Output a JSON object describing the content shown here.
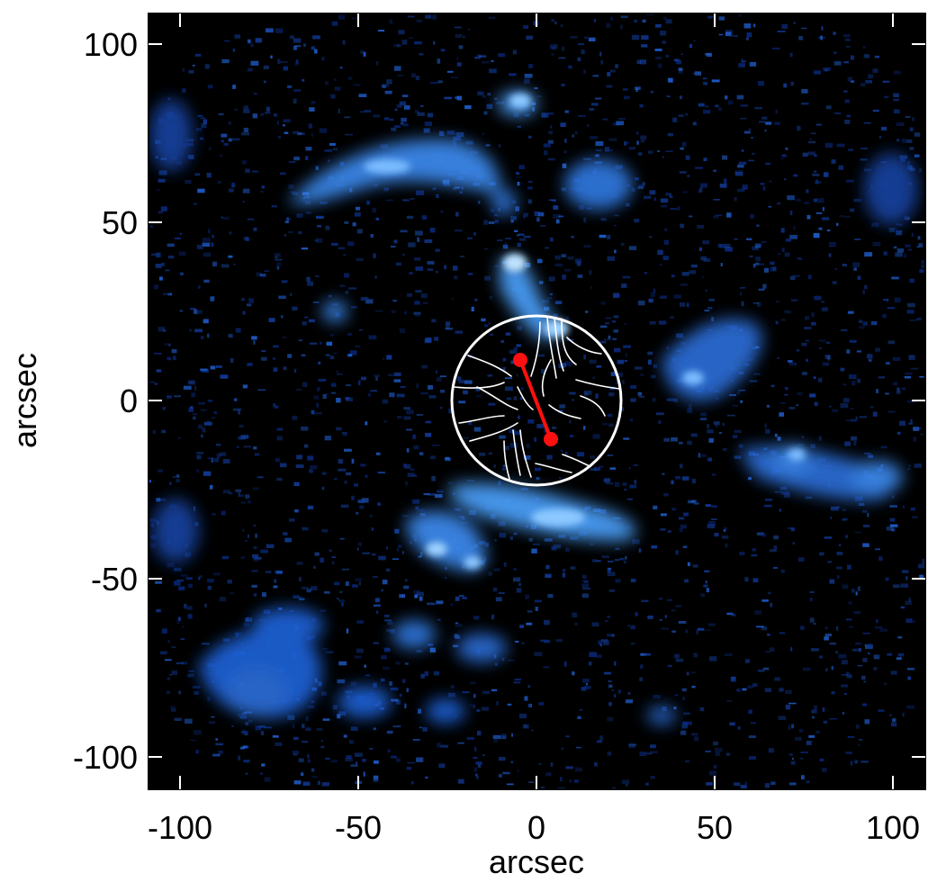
{
  "figure": {
    "xlabel": "arcsec",
    "ylabel": "arcsec",
    "x_ticks": [
      -100,
      -50,
      0,
      50,
      100
    ],
    "y_ticks": [
      100,
      50,
      0,
      -50,
      -100
    ],
    "xlim": [
      -108,
      108
    ],
    "ylim": [
      -108,
      108
    ]
  },
  "overlay": {
    "circle_center": [
      0,
      0
    ],
    "circle_radius": 24,
    "circle_color": "#ffffff",
    "marker_color": "#ff1010",
    "marker_points": [
      [
        -5,
        11
      ],
      [
        4,
        -11
      ]
    ]
  },
  "colors": {
    "background": "#000000",
    "emission_dark": "#0a2a80",
    "emission_mid": "#1f5fd0",
    "emission_bright": "#5fb0ff"
  }
}
